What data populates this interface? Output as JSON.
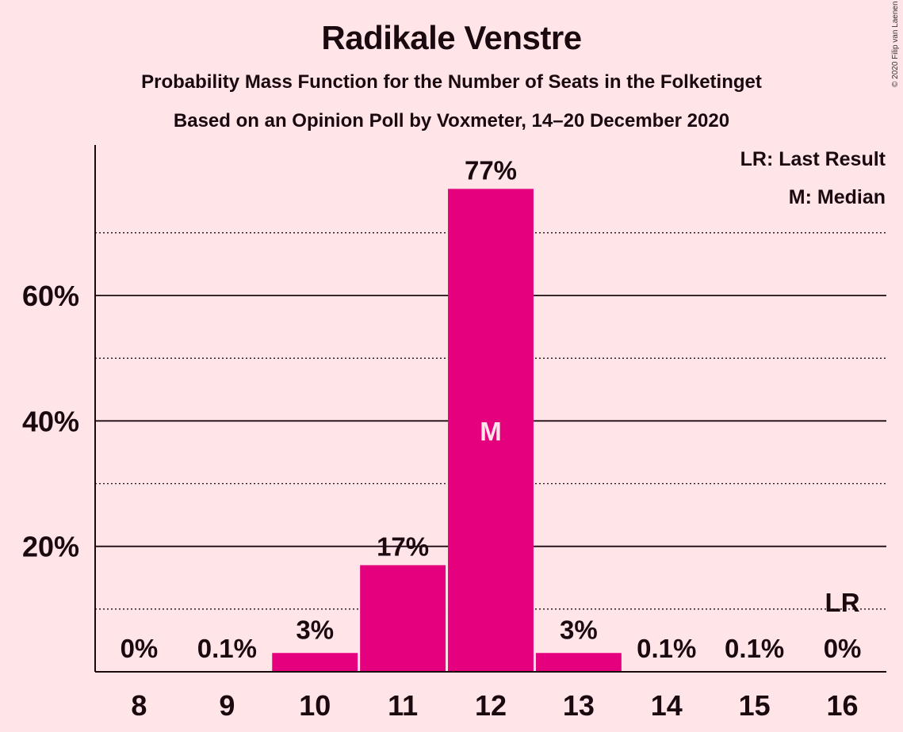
{
  "chart_data": {
    "type": "bar",
    "title": "Radikale Venstre",
    "subtitle": "Probability Mass Function for the Number of Seats in the Folketinget",
    "subtitle2": "Based on an Opinion Poll by Voxmeter, 14–20 December 2020",
    "categories": [
      "8",
      "9",
      "10",
      "11",
      "12",
      "13",
      "14",
      "15",
      "16"
    ],
    "values": [
      0,
      0.1,
      3,
      17,
      77,
      3,
      0.1,
      0.1,
      0
    ],
    "data_labels": [
      "0%",
      "0.1%",
      "3%",
      "17%",
      "77%",
      "3%",
      "0.1%",
      "0.1%",
      "0%"
    ],
    "ylim": [
      0,
      84
    ],
    "yticks": [
      20,
      40,
      60
    ],
    "ytick_labels": [
      "20%",
      "40%",
      "60%"
    ],
    "minor_gridlines": [
      10,
      30,
      50,
      70
    ],
    "median_category": "12",
    "median_marker": "M",
    "last_result_category": "16",
    "last_result_marker": "LR",
    "legend": [
      "LR: Last Result",
      "M: Median"
    ],
    "legend_position": "top-right",
    "bar_color": "#E5007D",
    "background_color": "#FFE4E8"
  },
  "copyright": "© 2020 Filip van Laenen"
}
